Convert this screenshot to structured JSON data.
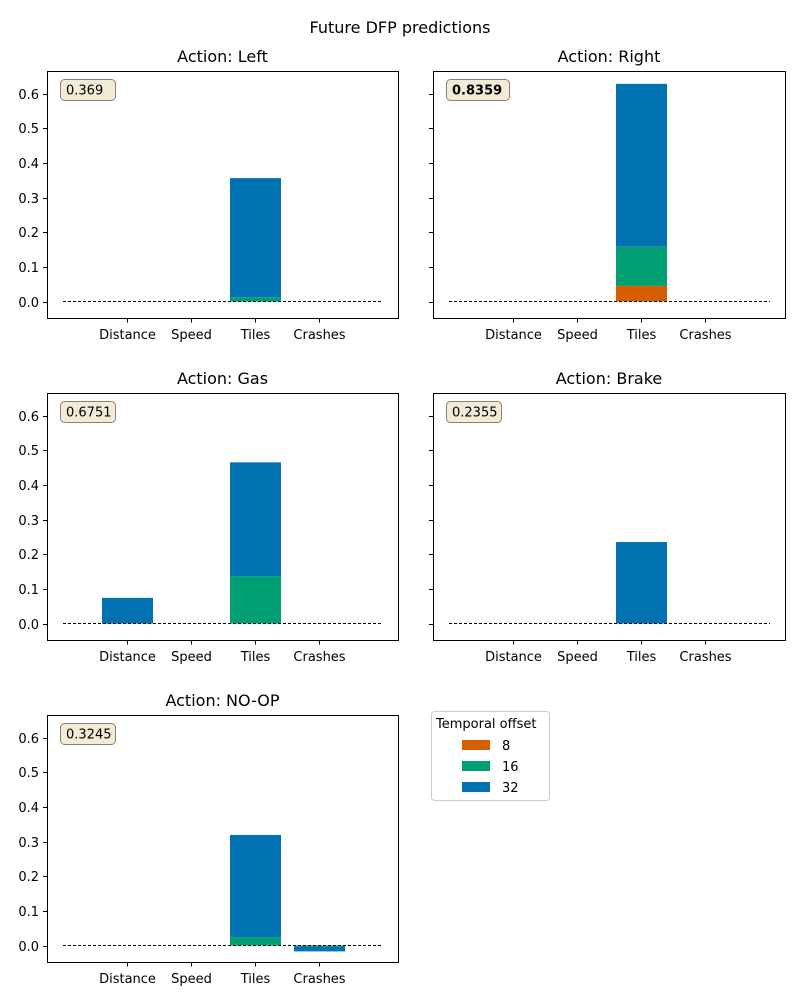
{
  "figure_title": "Future DFP predictions",
  "colors": {
    "8": "#D55E00",
    "16": "#009E73",
    "32": "#0072B2",
    "score_box_fill": "#F5EAD6",
    "score_box_edge": "#8C8071"
  },
  "legend": {
    "title": "Temporal offset",
    "entries": [
      "8",
      "16",
      "32"
    ]
  },
  "chart_data": [
    {
      "type": "bar",
      "stacked": true,
      "title": "Action: Left",
      "score": "0.369",
      "score_bold": false,
      "categories": [
        "Distance",
        "Speed",
        "Tiles",
        "Crashes"
      ],
      "ylim": [
        -0.05,
        0.66
      ],
      "yticks": [
        "0.0",
        "0.1",
        "0.2",
        "0.3",
        "0.4",
        "0.5",
        "0.6"
      ],
      "baseline": "dashed",
      "series": [
        {
          "name": "8",
          "values": [
            0,
            0,
            0,
            0
          ]
        },
        {
          "name": "16",
          "values": [
            0,
            0,
            0.012,
            0
          ]
        },
        {
          "name": "32",
          "values": [
            0,
            0,
            0.344,
            0
          ]
        }
      ]
    },
    {
      "type": "bar",
      "stacked": true,
      "title": "Action: Right",
      "score": "0.8359",
      "score_bold": true,
      "categories": [
        "Distance",
        "Speed",
        "Tiles",
        "Crashes"
      ],
      "ylim": [
        -0.05,
        0.66
      ],
      "yticks": [],
      "baseline": "dashed",
      "series": [
        {
          "name": "8",
          "values": [
            0,
            0,
            0.045,
            0
          ]
        },
        {
          "name": "16",
          "values": [
            0,
            0,
            0.113,
            0
          ]
        },
        {
          "name": "32",
          "values": [
            0,
            0,
            0.47,
            0
          ]
        }
      ]
    },
    {
      "type": "bar",
      "stacked": true,
      "title": "Action: Gas",
      "score": "0.6751",
      "score_bold": false,
      "categories": [
        "Distance",
        "Speed",
        "Tiles",
        "Crashes"
      ],
      "ylim": [
        -0.05,
        0.66
      ],
      "yticks": [
        "0.0",
        "0.1",
        "0.2",
        "0.3",
        "0.4",
        "0.5",
        "0.6"
      ],
      "baseline": "dashed",
      "series": [
        {
          "name": "8",
          "values": [
            0,
            0,
            0,
            0
          ]
        },
        {
          "name": "16",
          "values": [
            0,
            0,
            0.136,
            0
          ]
        },
        {
          "name": "32",
          "values": [
            0.074,
            0,
            0.329,
            0
          ]
        }
      ]
    },
    {
      "type": "bar",
      "stacked": true,
      "title": "Action: Brake",
      "score": "0.2355",
      "score_bold": false,
      "categories": [
        "Distance",
        "Speed",
        "Tiles",
        "Crashes"
      ],
      "ylim": [
        -0.05,
        0.66
      ],
      "yticks": [],
      "baseline": "dashed",
      "series": [
        {
          "name": "8",
          "values": [
            0,
            0,
            0,
            0
          ]
        },
        {
          "name": "16",
          "values": [
            0,
            0,
            0,
            0
          ]
        },
        {
          "name": "32",
          "values": [
            0,
            0,
            0.235,
            0
          ]
        }
      ]
    },
    {
      "type": "bar",
      "stacked": true,
      "title": "Action: NO-OP",
      "score": "0.3245",
      "score_bold": false,
      "categories": [
        "Distance",
        "Speed",
        "Tiles",
        "Crashes"
      ],
      "ylim": [
        -0.05,
        0.66
      ],
      "yticks": [
        "0.0",
        "0.1",
        "0.2",
        "0.3",
        "0.4",
        "0.5",
        "0.6"
      ],
      "baseline": "dashed",
      "series": [
        {
          "name": "8",
          "values": [
            0,
            0,
            0,
            0
          ]
        },
        {
          "name": "16",
          "values": [
            0,
            0,
            0.024,
            -0.003
          ]
        },
        {
          "name": "32",
          "values": [
            0,
            0,
            0.295,
            -0.014
          ]
        }
      ]
    }
  ]
}
